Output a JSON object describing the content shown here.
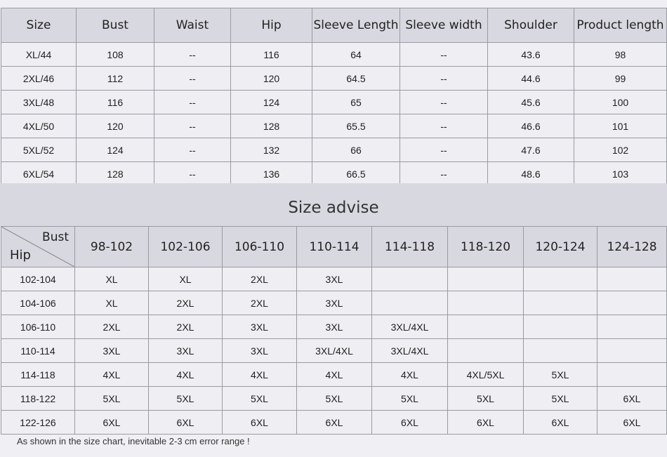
{
  "size_chart": {
    "headers": [
      "Size",
      "Bust",
      "Waist",
      "Hip",
      "Sleeve Length",
      "Sleeve width",
      "Shoulder",
      "Product length"
    ],
    "rows": [
      [
        "XL/44",
        "108",
        "--",
        "116",
        "64",
        "--",
        "43.6",
        "98"
      ],
      [
        "2XL/46",
        "112",
        "--",
        "120",
        "64.5",
        "--",
        "44.6",
        "99"
      ],
      [
        "3XL/48",
        "116",
        "--",
        "124",
        "65",
        "--",
        "45.6",
        "100"
      ],
      [
        "4XL/50",
        "120",
        "--",
        "128",
        "65.5",
        "--",
        "46.6",
        "101"
      ],
      [
        "5XL/52",
        "124",
        "--",
        "132",
        "66",
        "--",
        "47.6",
        "102"
      ],
      [
        "6XL/54",
        "128",
        "--",
        "136",
        "66.5",
        "--",
        "48.6",
        "103"
      ]
    ]
  },
  "size_advise": {
    "title": "Size advise",
    "corner_bust": "Bust",
    "corner_hip": "Hip",
    "bust_ranges": [
      "98-102",
      "102-106",
      "106-110",
      "110-114",
      "114-118",
      "118-120",
      "120-124",
      "124-128"
    ],
    "rows": [
      {
        "hip": "102-104",
        "sizes": [
          "XL",
          "XL",
          "2XL",
          "3XL",
          "",
          "",
          "",
          ""
        ]
      },
      {
        "hip": "104-106",
        "sizes": [
          "XL",
          "2XL",
          "2XL",
          "3XL",
          "",
          "",
          "",
          ""
        ]
      },
      {
        "hip": "106-110",
        "sizes": [
          "2XL",
          "2XL",
          "3XL",
          "3XL",
          "3XL/4XL",
          "",
          "",
          ""
        ]
      },
      {
        "hip": "110-114",
        "sizes": [
          "3XL",
          "3XL",
          "3XL",
          "3XL/4XL",
          "3XL/4XL",
          "",
          "",
          ""
        ]
      },
      {
        "hip": "114-118",
        "sizes": [
          "4XL",
          "4XL",
          "4XL",
          "4XL",
          "4XL",
          "4XL/5XL",
          "5XL",
          ""
        ]
      },
      {
        "hip": "118-122",
        "sizes": [
          "5XL",
          "5XL",
          "5XL",
          "5XL",
          "5XL",
          "5XL",
          "5XL",
          "6XL"
        ]
      },
      {
        "hip": "122-126",
        "sizes": [
          "6XL",
          "6XL",
          "6XL",
          "6XL",
          "6XL",
          "6XL",
          "6XL",
          "6XL"
        ]
      }
    ]
  },
  "note": "As shown in the size chart, inevitable 2-3 cm error range !"
}
